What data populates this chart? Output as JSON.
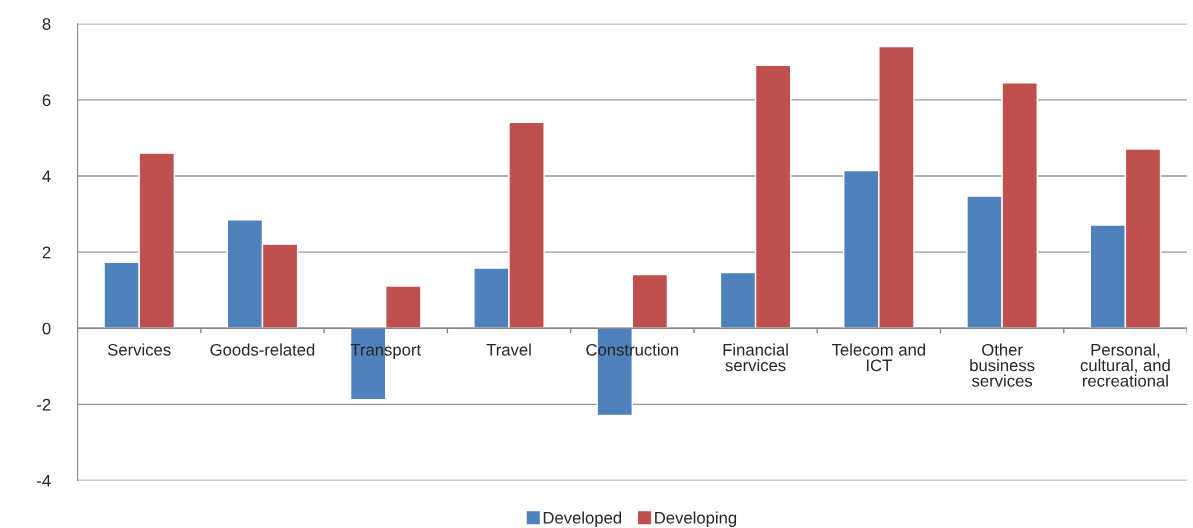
{
  "chart_data": {
    "type": "bar",
    "categories": [
      "Services",
      "Goods-related",
      "Transport",
      "Travel",
      "Construction",
      "Financial services",
      "Telecom and ICT",
      "Other business services",
      "Personal, cultural, and recreational"
    ],
    "series": [
      {
        "name": "Developed",
        "color": "#4f81bd",
        "values": [
          1.73,
          2.85,
          -1.88,
          1.58,
          -2.29,
          1.46,
          4.14,
          3.47,
          2.71
        ]
      },
      {
        "name": "Developing",
        "color": "#c0504d",
        "values": [
          4.6,
          2.21,
          1.11,
          5.41,
          1.41,
          6.91,
          7.4,
          6.45,
          4.71
        ]
      }
    ],
    "ylim": [
      -4,
      8
    ],
    "yticks": [
      -4,
      -2,
      0,
      2,
      4,
      6,
      8
    ],
    "grid": "y",
    "legend": "bottom"
  }
}
